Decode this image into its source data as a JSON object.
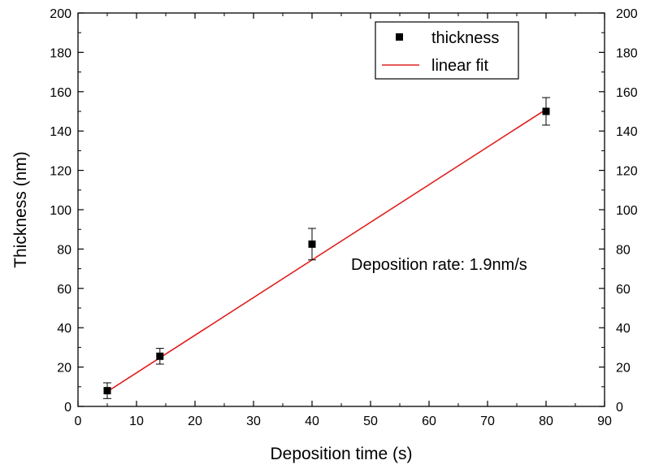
{
  "chart_data": {
    "type": "scatter",
    "xlabel": "Deposition time (s)",
    "ylabel": "Thickness (nm)",
    "xlim": [
      0,
      90
    ],
    "ylim": [
      0,
      200
    ],
    "x_ticks": [
      0,
      10,
      20,
      30,
      40,
      50,
      60,
      70,
      80,
      90
    ],
    "y_ticks": [
      0,
      20,
      40,
      60,
      80,
      100,
      120,
      140,
      160,
      180,
      200
    ],
    "right_axis_ticks": [
      0,
      20,
      40,
      60,
      80,
      100,
      120,
      140,
      160,
      180,
      200
    ],
    "grid": false,
    "legend_position": "top-right",
    "series": [
      {
        "name": "thickness",
        "kind": "points",
        "marker": "square",
        "color": "#000000",
        "x": [
          5,
          14,
          40,
          80
        ],
        "y": [
          8,
          25.5,
          82.5,
          150
        ],
        "error": [
          4,
          4,
          8,
          7
        ]
      },
      {
        "name": "linear fit",
        "kind": "line",
        "color": "#e02020",
        "x": [
          5,
          80
        ],
        "y": [
          7.5,
          151
        ]
      }
    ],
    "annotations": [
      {
        "text": "Deposition rate: 1.9nm/s"
      }
    ]
  }
}
